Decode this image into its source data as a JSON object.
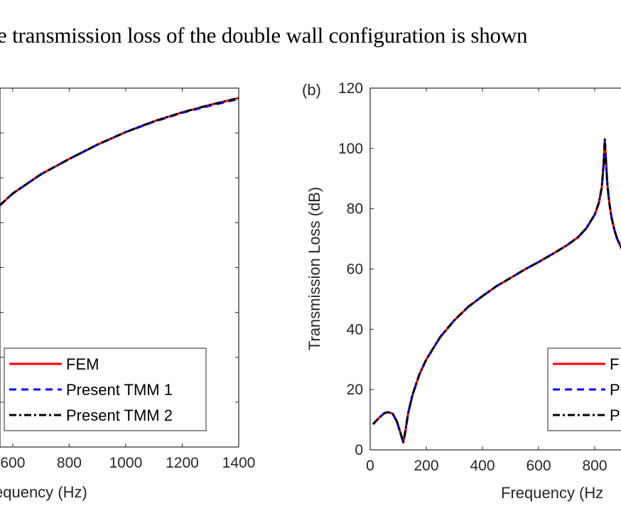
{
  "paper": {
    "body_text": "e transmission loss of the double wall configuration is shown"
  },
  "chart_data": [
    {
      "type": "line",
      "panel": "(a)",
      "xlabel": "equency (Hz)",
      "ylabel": "",
      "xlim": [
        555,
        1400
      ],
      "ylim": [
        0,
        80
      ],
      "x_ticks": [
        600,
        800,
        1000,
        1200,
        1400
      ],
      "x_tick_labels": [
        "600",
        "800",
        "1000",
        "1200",
        "1400"
      ],
      "y_ticks": [
        10,
        20,
        30,
        40,
        50,
        60,
        70
      ],
      "grid": false,
      "legend": {
        "placement": "bottom-left",
        "entries": [
          "FEM",
          "Present TMM 1",
          "Present TMM 2"
        ]
      },
      "series": [
        {
          "name": "FEM",
          "color": "#ff0000",
          "style": "solid",
          "x": [
            555,
            600,
            700,
            800,
            900,
            1000,
            1100,
            1200,
            1300,
            1400
          ],
          "y": [
            53.9,
            56.5,
            60.8,
            64.2,
            67.4,
            70.2,
            72.6,
            74.6,
            76.3,
            77.8
          ]
        },
        {
          "name": "Present TMM 1",
          "color": "#0000ff",
          "style": "dashed",
          "x": [
            555,
            600,
            700,
            800,
            900,
            1000,
            1100,
            1200,
            1300,
            1400
          ],
          "y": [
            53.9,
            56.5,
            60.8,
            64.2,
            67.4,
            70.2,
            72.5,
            74.5,
            76.1,
            77.6
          ]
        },
        {
          "name": "Present TMM 2",
          "color": "#000000",
          "style": "dashdot",
          "x": [
            555,
            600,
            700,
            800,
            900,
            1000,
            1100,
            1200,
            1300,
            1400
          ],
          "y": [
            53.9,
            56.5,
            60.8,
            64.2,
            67.4,
            70.2,
            72.6,
            74.6,
            76.3,
            77.8
          ]
        }
      ]
    },
    {
      "type": "line",
      "panel": "(b)",
      "xlabel": "Frequency (Hz",
      "ylabel": "Transmission Loss (dB)",
      "xlim": [
        0,
        1400
      ],
      "ylim": [
        0,
        120
      ],
      "x_ticks": [
        0,
        200,
        400,
        600,
        800
      ],
      "x_tick_labels": [
        "0",
        "200",
        "400",
        "600",
        "800"
      ],
      "y_ticks": [
        0,
        20,
        40,
        60,
        80,
        100,
        120
      ],
      "y_tick_labels": [
        "0",
        "20",
        "40",
        "60",
        "80",
        "100",
        "120"
      ],
      "grid": false,
      "legend": {
        "placement": "bottom-right",
        "entries": [
          "F",
          "P",
          "P"
        ]
      },
      "series": [
        {
          "name": "FEM",
          "color": "#ff0000",
          "style": "solid",
          "x": [
            10,
            30,
            50,
            65,
            80,
            95,
            108,
            118,
            125,
            135,
            150,
            175,
            200,
            250,
            300,
            350,
            400,
            450,
            500,
            550,
            600,
            650,
            700,
            740,
            770,
            800,
            815,
            825,
            832,
            836,
            840,
            845,
            852,
            860,
            870,
            880,
            900
          ],
          "y": [
            8.5,
            10.5,
            12.2,
            12.5,
            12,
            9.5,
            5.5,
            2.5,
            6,
            12,
            18,
            25,
            30,
            37.5,
            43,
            47.5,
            51,
            54.3,
            57,
            59.8,
            62.3,
            65,
            67.8,
            70.5,
            73.5,
            78,
            82,
            87,
            95,
            103,
            96,
            88,
            82,
            77,
            73,
            70,
            66
          ]
        },
        {
          "name": "Present TMM 1",
          "color": "#0000ff",
          "style": "dashed",
          "x": [
            10,
            30,
            50,
            65,
            80,
            95,
            108,
            118,
            125,
            135,
            150,
            175,
            200,
            250,
            300,
            350,
            400,
            450,
            500,
            550,
            600,
            650,
            700,
            740,
            770,
            800,
            815,
            825,
            832,
            836,
            840,
            845,
            852,
            860,
            870,
            880,
            900
          ],
          "y": [
            8.5,
            10.5,
            12.2,
            12.5,
            12,
            9.5,
            5.5,
            2.5,
            6,
            12,
            18,
            25,
            30,
            37.5,
            43,
            47.5,
            51,
            54.3,
            57,
            59.8,
            62.3,
            65,
            67.8,
            70.5,
            73.5,
            78,
            82,
            87,
            95,
            103,
            96,
            88,
            82,
            77,
            73,
            70,
            66
          ]
        },
        {
          "name": "Present TMM 2",
          "color": "#000000",
          "style": "dashdot",
          "x": [
            10,
            30,
            50,
            65,
            80,
            95,
            108,
            118,
            125,
            135,
            150,
            175,
            200,
            250,
            300,
            350,
            400,
            450,
            500,
            550,
            600,
            650,
            700,
            740,
            770,
            800,
            815,
            825,
            832,
            836,
            840,
            845,
            852,
            860,
            870,
            880,
            900
          ],
          "y": [
            8.5,
            10.5,
            12.2,
            12.5,
            12,
            9.5,
            5.5,
            2.5,
            6,
            12,
            18,
            25,
            30,
            37.5,
            43,
            47.5,
            51,
            54.3,
            57,
            59.8,
            62.3,
            65,
            67.8,
            70.5,
            73.5,
            78,
            82,
            87,
            95,
            103,
            96,
            88,
            82,
            77,
            73,
            70,
            66
          ]
        }
      ]
    }
  ]
}
